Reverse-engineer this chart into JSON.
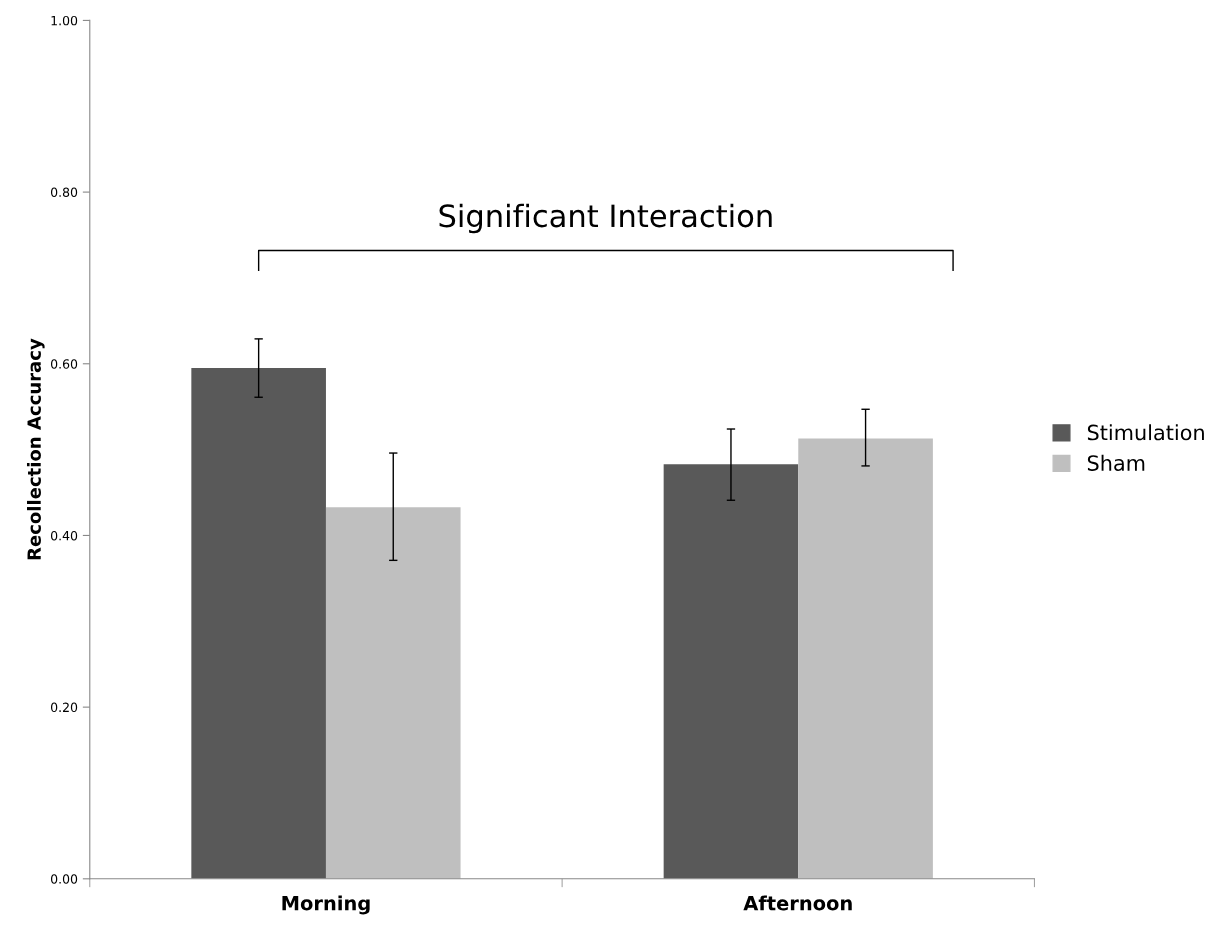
{
  "chart_data": {
    "type": "bar",
    "ylabel": "Recollection Accuracy",
    "categories": [
      "Morning",
      "Afternoon"
    ],
    "series": [
      {
        "name": "Stimulation",
        "color": "#595959",
        "values": [
          0.595,
          0.483
        ],
        "errors": [
          [
            0.561,
            0.629
          ],
          [
            0.441,
            0.524
          ]
        ]
      },
      {
        "name": "Sham",
        "color": "#bfbfbf",
        "values": [
          0.433,
          0.513
        ],
        "errors": [
          [
            0.371,
            0.496
          ],
          [
            0.481,
            0.547
          ]
        ]
      }
    ],
    "ylim": [
      0,
      1
    ],
    "yticks": [
      {
        "value": 0,
        "label": "0.00"
      },
      {
        "value": 0.2,
        "label": "0.20"
      },
      {
        "value": 0.4,
        "label": "0.40"
      },
      {
        "value": 0.6,
        "label": "0.60"
      },
      {
        "value": 0.8,
        "label": "0.80"
      },
      {
        "value": 1,
        "label": "1.00"
      }
    ],
    "annotations": [
      "Significant Interaction"
    ],
    "grid": false,
    "legend": "right"
  }
}
